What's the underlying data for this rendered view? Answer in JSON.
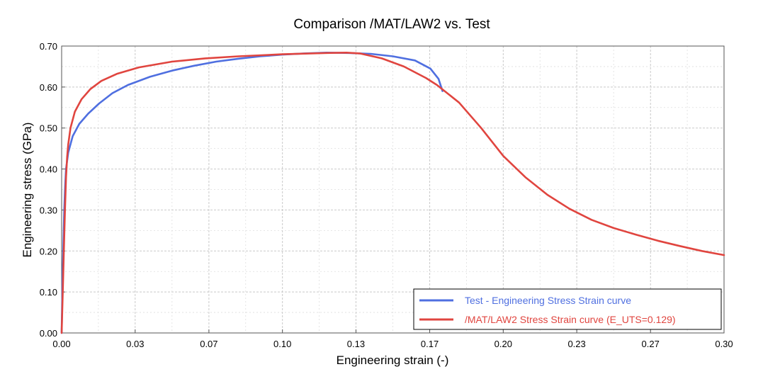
{
  "chart_data": {
    "type": "line",
    "title": "Comparison /MAT/LAW2 vs. Test",
    "xlabel": "Engineering strain (-)",
    "ylabel": "Engineering stress (GPa)",
    "xlim": [
      0,
      0.3
    ],
    "ylim": [
      0,
      0.7
    ],
    "x_ticks": [
      0.0,
      0.0333,
      0.0667,
      0.1,
      0.1333,
      0.1667,
      0.2,
      0.2333,
      0.2667,
      0.3
    ],
    "x_tick_labels": [
      "0.00",
      "0.03",
      "0.07",
      "0.10",
      "0.13",
      "0.17",
      "0.20",
      "0.23",
      "0.27",
      "0.30"
    ],
    "y_ticks": [
      0,
      0.1,
      0.2,
      0.3,
      0.4,
      0.5,
      0.6,
      0.7
    ],
    "y_tick_labels": [
      "0.00",
      "0.10",
      "0.20",
      "0.30",
      "0.40",
      "0.50",
      "0.60",
      "0.70"
    ],
    "grid": true,
    "legend_position": "bottom-right",
    "series": [
      {
        "name": "Test - Engineering Stress Strain curve",
        "color": "#4f6fe0",
        "points": [
          [
            0,
            0
          ],
          [
            0.0004,
            0.12
          ],
          [
            0.0008,
            0.22
          ],
          [
            0.0012,
            0.3
          ],
          [
            0.0016,
            0.36
          ],
          [
            0.002,
            0.4
          ],
          [
            0.003,
            0.44
          ],
          [
            0.005,
            0.48
          ],
          [
            0.008,
            0.51
          ],
          [
            0.012,
            0.535
          ],
          [
            0.017,
            0.56
          ],
          [
            0.023,
            0.585
          ],
          [
            0.03,
            0.605
          ],
          [
            0.04,
            0.625
          ],
          [
            0.05,
            0.64
          ],
          [
            0.06,
            0.652
          ],
          [
            0.07,
            0.662
          ],
          [
            0.08,
            0.669
          ],
          [
            0.09,
            0.675
          ],
          [
            0.1,
            0.679
          ],
          [
            0.11,
            0.682
          ],
          [
            0.12,
            0.684
          ],
          [
            0.13,
            0.683
          ],
          [
            0.14,
            0.681
          ],
          [
            0.15,
            0.675
          ],
          [
            0.16,
            0.665
          ],
          [
            0.167,
            0.645
          ],
          [
            0.1707,
            0.62
          ],
          [
            0.1725,
            0.59
          ]
        ]
      },
      {
        "name": "/MAT/LAW2 Stress Strain curve (E_UTS=0.129)",
        "color": "#e0453f",
        "points": [
          [
            0,
            0
          ],
          [
            0.0005,
            0.1
          ],
          [
            0.001,
            0.2
          ],
          [
            0.0015,
            0.3
          ],
          [
            0.002,
            0.38
          ],
          [
            0.0025,
            0.43
          ],
          [
            0.003,
            0.46
          ],
          [
            0.004,
            0.5
          ],
          [
            0.006,
            0.54
          ],
          [
            0.009,
            0.57
          ],
          [
            0.013,
            0.595
          ],
          [
            0.018,
            0.615
          ],
          [
            0.025,
            0.632
          ],
          [
            0.035,
            0.648
          ],
          [
            0.05,
            0.662
          ],
          [
            0.065,
            0.67
          ],
          [
            0.08,
            0.675
          ],
          [
            0.1,
            0.68
          ],
          [
            0.12,
            0.683
          ],
          [
            0.129,
            0.684
          ],
          [
            0.135,
            0.682
          ],
          [
            0.145,
            0.67
          ],
          [
            0.155,
            0.65
          ],
          [
            0.165,
            0.622
          ],
          [
            0.17,
            0.605
          ],
          [
            0.18,
            0.562
          ],
          [
            0.19,
            0.5
          ],
          [
            0.2,
            0.432
          ],
          [
            0.21,
            0.38
          ],
          [
            0.22,
            0.337
          ],
          [
            0.23,
            0.303
          ],
          [
            0.24,
            0.276
          ],
          [
            0.25,
            0.256
          ],
          [
            0.26,
            0.24
          ],
          [
            0.27,
            0.225
          ],
          [
            0.28,
            0.212
          ],
          [
            0.29,
            0.2
          ],
          [
            0.3,
            0.19
          ]
        ]
      }
    ]
  }
}
